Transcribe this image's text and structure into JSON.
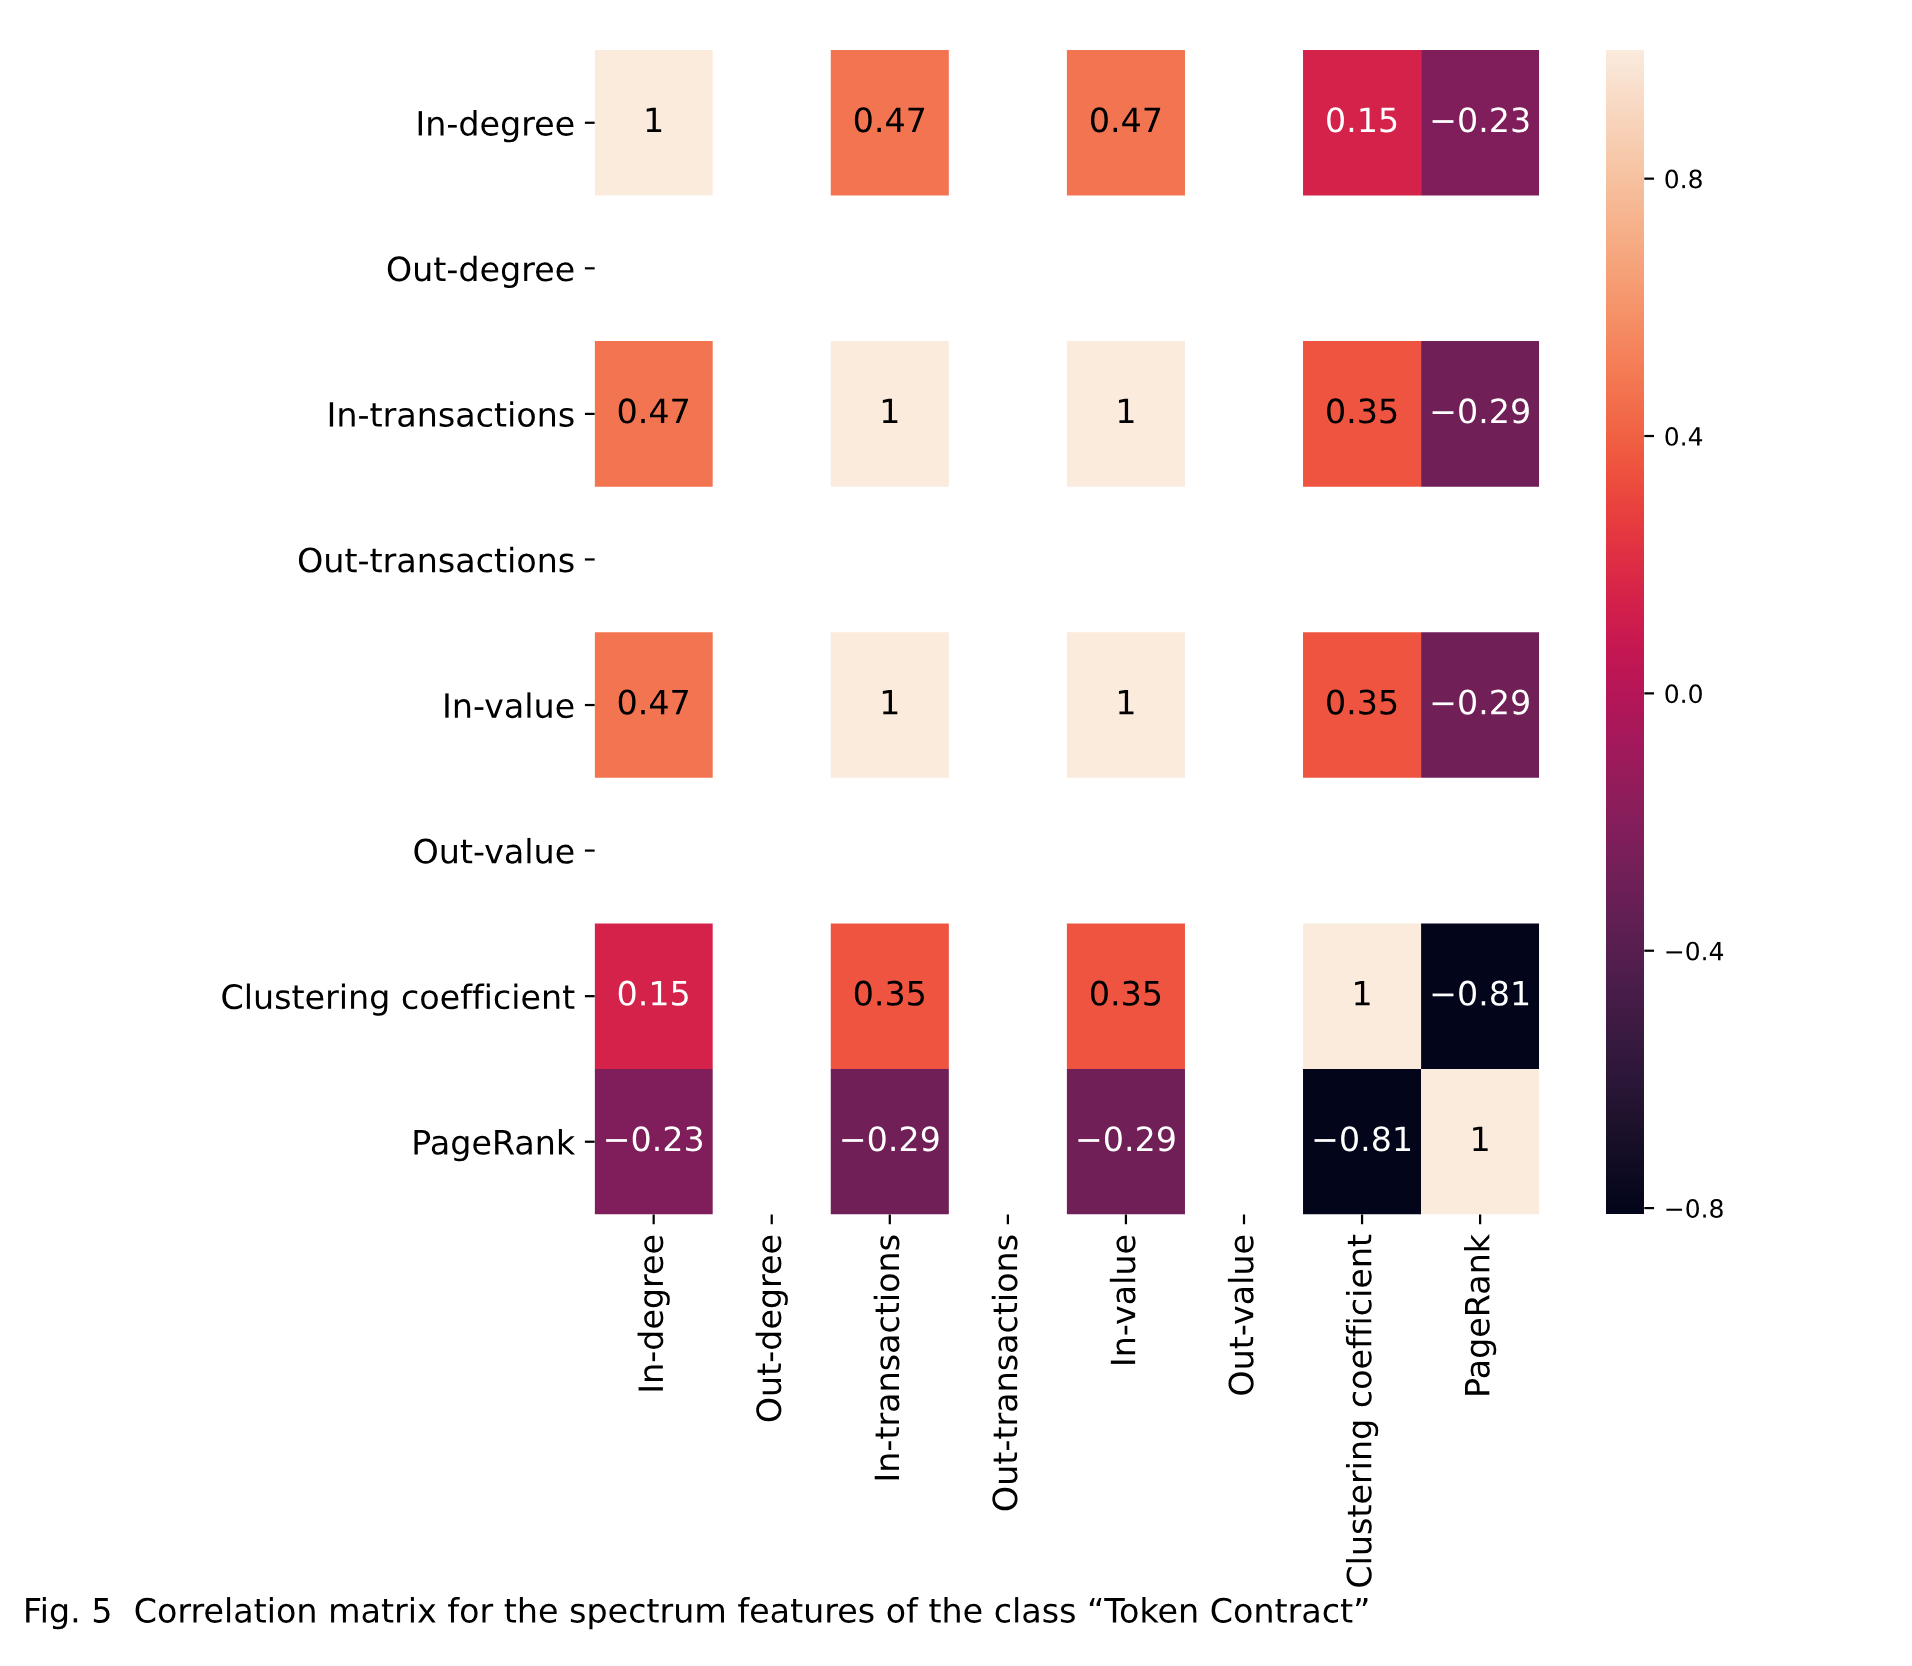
{
  "chart_data": {
    "type": "heatmap",
    "categories": [
      "In-degree",
      "Out-degree",
      "In-transactions",
      "Out-transactions",
      "In-value",
      "Out-value",
      "Clustering coefficient",
      "PageRank"
    ],
    "y_categories": [
      "In-degree",
      "Out-degree",
      "In-transactions",
      "Out-transactions",
      "In-value",
      "Out-value",
      "Clustering coefficient",
      "PageRank"
    ],
    "cells": [
      [
        1,
        null,
        0.47,
        null,
        0.47,
        null,
        0.15,
        -0.23
      ],
      [
        null,
        null,
        null,
        null,
        null,
        null,
        null,
        null
      ],
      [
        0.47,
        null,
        1,
        null,
        1,
        null,
        0.35,
        -0.29
      ],
      [
        null,
        null,
        null,
        null,
        null,
        null,
        null,
        null
      ],
      [
        0.47,
        null,
        1,
        null,
        1,
        null,
        0.35,
        -0.29
      ],
      [
        null,
        null,
        null,
        null,
        null,
        null,
        null,
        null
      ],
      [
        0.15,
        null,
        0.35,
        null,
        0.35,
        null,
        1,
        -0.81
      ],
      [
        -0.23,
        null,
        -0.29,
        null,
        -0.29,
        null,
        -0.81,
        1
      ]
    ],
    "clim": [
      -0.81,
      1
    ],
    "cticks": [
      {
        "value": -0.8,
        "label": "−0.8"
      },
      {
        "value": -0.4,
        "label": "−0.4"
      },
      {
        "value": 0,
        "label": "0.0"
      },
      {
        "value": 0.4,
        "label": "0.4"
      },
      {
        "value": 0.8,
        "label": "0.8"
      }
    ],
    "data_labels": true,
    "annotations": [
      "Fig. 5  Correlation matrix for the spectrum features of the class “Token Contract”"
    ]
  }
}
